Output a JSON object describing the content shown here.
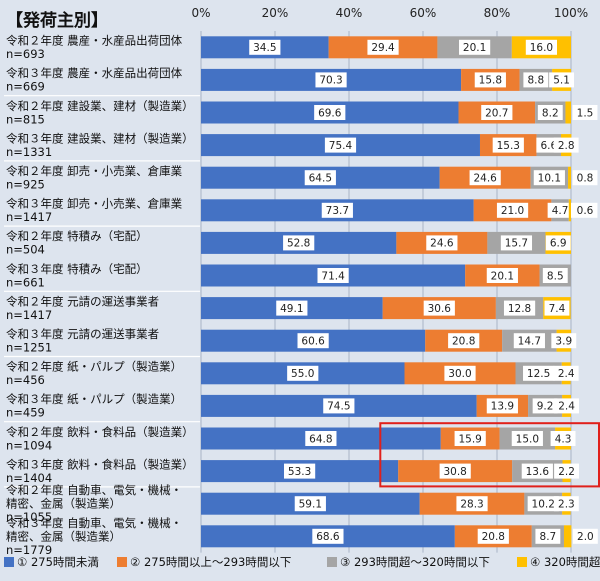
{
  "chart_data": {
    "type": "bar",
    "orientation": "horizontal",
    "stacked": true,
    "percent_stacked": true,
    "title": "【発荷主別】",
    "xlim": [
      0,
      100
    ],
    "x_ticks": [
      "0%",
      "20%",
      "40%",
      "60%",
      "80%",
      "100%"
    ],
    "grid": true,
    "legend_position": "bottom",
    "categories": [
      {
        "label": [
          "令和２年度 農産・水産品出荷団体",
          "n=693"
        ]
      },
      {
        "label": [
          "令和３年度 農産・水産品出荷団体",
          "n=669"
        ]
      },
      {
        "label": [
          "令和２年度 建設業、建材（製造業）",
          "n=815"
        ]
      },
      {
        "label": [
          "令和３年度 建設業、建材（製造業）",
          "n=1331"
        ]
      },
      {
        "label": [
          "令和２年度 卸売・小売業、倉庫業",
          "n=925"
        ]
      },
      {
        "label": [
          "令和３年度 卸売・小売業、倉庫業",
          "n=1417"
        ]
      },
      {
        "label": [
          "令和２年度 特積み（宅配）",
          "n=504"
        ]
      },
      {
        "label": [
          "令和３年度 特積み（宅配）",
          "n=661"
        ]
      },
      {
        "label": [
          "令和２年度 元請の運送事業者",
          "n=1417"
        ]
      },
      {
        "label": [
          "令和３年度 元請の運送事業者",
          "n=1251"
        ]
      },
      {
        "label": [
          "令和２年度 紙・パルプ（製造業）",
          "n=456"
        ]
      },
      {
        "label": [
          "令和３年度 紙・パルプ（製造業）",
          "n=459"
        ]
      },
      {
        "label": [
          "令和２年度 飲料・食料品（製造業）",
          "n=1094"
        ]
      },
      {
        "label": [
          "令和３年度 飲料・食料品（製造業）",
          "n=1404"
        ]
      },
      {
        "label": [
          "令和２年度 自動車、電気・機械・",
          "精密、金属（製造業）",
          "n=1055"
        ]
      },
      {
        "label": [
          "令和３年度 自動車、電気・機械・",
          "精密、金属（製造業）",
          "n=1779"
        ]
      }
    ],
    "series": [
      {
        "name": "① 275時間未満",
        "color": "#4472c4",
        "values": [
          34.5,
          70.3,
          69.6,
          75.4,
          64.5,
          73.7,
          52.8,
          71.4,
          49.1,
          60.6,
          55.0,
          74.5,
          64.8,
          53.3,
          59.1,
          68.6
        ]
      },
      {
        "name": "② 275時間以上～293時間以下",
        "color": "#ed7d31",
        "values": [
          29.4,
          15.8,
          20.7,
          15.3,
          24.6,
          21.0,
          24.6,
          20.1,
          30.6,
          20.8,
          30.0,
          13.9,
          15.9,
          30.8,
          28.3,
          20.8
        ]
      },
      {
        "name": "③ 293時間超～320時間以下",
        "color": "#a5a5a5",
        "values": [
          20.1,
          8.8,
          8.2,
          6.6,
          10.1,
          4.7,
          15.7,
          8.5,
          12.8,
          14.7,
          12.5,
          9.2,
          15.0,
          13.6,
          10.2,
          8.7
        ]
      },
      {
        "name": "④ 320時間超",
        "color": "#ffc000",
        "values": [
          16.0,
          5.1,
          1.5,
          2.8,
          0.8,
          0.6,
          6.9,
          null,
          7.4,
          3.9,
          2.4,
          2.4,
          4.3,
          2.2,
          2.3,
          2.0
        ]
      }
    ],
    "label_placement": [
      [
        "in",
        "in",
        "in",
        "in"
      ],
      [
        "in",
        "in",
        "in",
        "in"
      ],
      [
        "in",
        "in",
        "in",
        "out"
      ],
      [
        "in",
        "in",
        "in",
        "in"
      ],
      [
        "in",
        "in",
        "in",
        "out"
      ],
      [
        "in",
        "in",
        "in",
        "out"
      ],
      [
        "in",
        "in",
        "in",
        "in"
      ],
      [
        "in",
        "in",
        "in",
        "none"
      ],
      [
        "in",
        "in",
        "in",
        "in"
      ],
      [
        "in",
        "in",
        "in",
        "in"
      ],
      [
        "in",
        "in",
        "in",
        "in"
      ],
      [
        "in",
        "in",
        "in",
        "in"
      ],
      [
        "in",
        "in",
        "in",
        "in"
      ],
      [
        "in",
        "in",
        "in",
        "in"
      ],
      [
        "in",
        "in",
        "in",
        "in"
      ],
      [
        "in",
        "in",
        "in",
        "out"
      ]
    ],
    "highlight": {
      "rows": [
        12,
        13
      ],
      "from_value": 49,
      "color": "#e0201b"
    }
  }
}
